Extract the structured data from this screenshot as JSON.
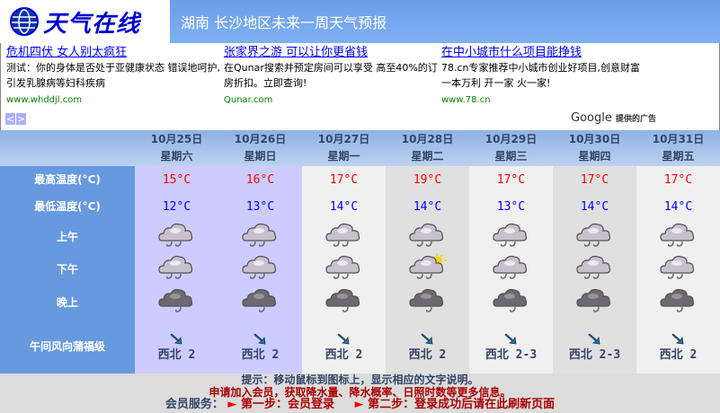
{
  "header": {
    "logo": "天气在线",
    "title": "湖南 长沙地区未来一周天气预报"
  },
  "ads": [
    {
      "title": "危机四伏 女人别太疯狂",
      "desc": "测试：你的身体是否处于亚健康状态 错误地呵护,引发乳腺病等妇科疾病",
      "url": "www.whddjl.com"
    },
    {
      "title": "张家界之游 可以让你更省钱",
      "desc": "在Qunar搜索并预定房间可以享受 高至40%的订房折扣。立即查询!",
      "url": "Qunar.com"
    },
    {
      "title": "在中小城市什么项目能挣钱",
      "desc": "78.cn专家推荐中小城市创业好项目,创意财富一本万利 开一家 火一家!",
      "url": "www.78.cn"
    }
  ],
  "ad_nav": {
    "prev": "<",
    "next": ">"
  },
  "google": {
    "brand": "Google",
    "label": "提供的广告"
  },
  "labels": {
    "max": "最高温度(°C)",
    "min": "最低温度(°C)",
    "morning": "上午",
    "afternoon": "下午",
    "evening": "晚上",
    "wind1": "午间风向",
    "wind2": "蒲福级"
  },
  "days": [
    {
      "date": "10月25日",
      "weekday": "星期六",
      "max": "15°C",
      "min": "12°C",
      "wind": "西北 2",
      "am": "light-rain",
      "pm": "light-rain",
      "night": "dark-rain"
    },
    {
      "date": "10月26日",
      "weekday": "星期日",
      "max": "16°C",
      "min": "13°C",
      "wind": "西北 2",
      "am": "light-rain",
      "pm": "light-rain",
      "night": "dark-rain"
    },
    {
      "date": "10月27日",
      "weekday": "星期一",
      "max": "17°C",
      "min": "14°C",
      "wind": "西北 2",
      "am": "light-rain",
      "pm": "light-rain",
      "night": "dark-rain"
    },
    {
      "date": "10月28日",
      "weekday": "星期二",
      "max": "19°C",
      "min": "14°C",
      "wind": "西北 2",
      "am": "light-rain",
      "pm": "sun-rain",
      "night": "dark-rain"
    },
    {
      "date": "10月29日",
      "weekday": "星期三",
      "max": "17°C",
      "min": "13°C",
      "wind": "西北 2-3",
      "am": "light-rain",
      "pm": "light-rain",
      "night": "dark-rain"
    },
    {
      "date": "10月30日",
      "weekday": "星期四",
      "max": "17°C",
      "min": "14°C",
      "wind": "西北 2-3",
      "am": "light-rain",
      "pm": "light-rain",
      "night": "dark-rain"
    },
    {
      "date": "10月31日",
      "weekday": "星期五",
      "max": "17°C",
      "min": "14°C",
      "wind": "西北 2",
      "am": "light-rain",
      "pm": "light-rain",
      "night": "dark-rain"
    }
  ],
  "footer": {
    "tip": "提示：移动鼠标到图标上，显示相应的文字说明。",
    "join": "申请加入会员，获取降水量、降水概率、日照时数等更多信息。",
    "service": "会员服务：",
    "step1": "第一步：会员登录",
    "step2": "第二步：登录成功后请在此刷新页面"
  },
  "colors": {
    "label_bg": "#6699dd",
    "max_temp": "#ff0000",
    "min_temp": "#0000ff"
  }
}
